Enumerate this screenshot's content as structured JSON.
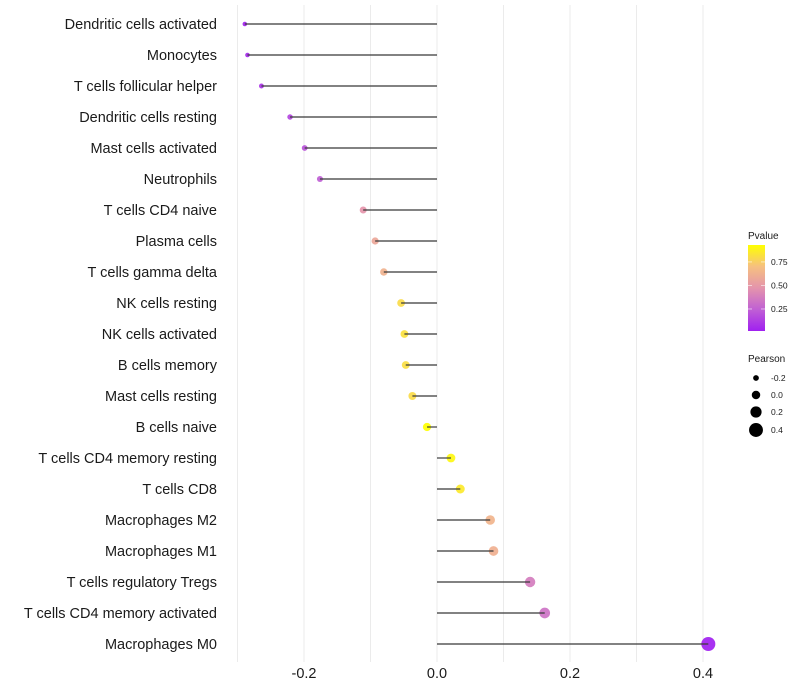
{
  "chart_data": {
    "type": "lollipop",
    "title": "",
    "xlabel": "",
    "ylabel": "",
    "xlim": [
      -0.3,
      0.42
    ],
    "x_ticks": [
      -0.2,
      0.0,
      0.2,
      0.4
    ],
    "x_tick_labels": [
      "-0.2",
      "0.0",
      "0.2",
      "0.4"
    ],
    "x_minor_grid": [
      -0.3,
      -0.1,
      0.1,
      0.3
    ],
    "grid": true,
    "categories": [
      "Dendritic cells activated",
      "Monocytes",
      "T cells follicular helper",
      "Dendritic cells resting",
      "Mast cells activated",
      "Neutrophils",
      "T cells CD4 naive",
      "Plasma cells",
      "T cells gamma delta",
      "NK cells resting",
      "NK cells activated",
      "B cells memory",
      "Mast cells resting",
      "B cells naive",
      "T cells CD4 memory resting",
      "T cells CD8",
      "Macrophages M2",
      "Macrophages M1",
      "T cells regulatory  Tregs ",
      "T cells CD4 memory activated",
      "Macrophages M0"
    ],
    "series": [
      {
        "name": "Pearson",
        "values": [
          -0.289,
          -0.285,
          -0.264,
          -0.221,
          -0.199,
          -0.176,
          -0.111,
          -0.093,
          -0.08,
          -0.054,
          -0.049,
          -0.047,
          -0.037,
          -0.015,
          0.021,
          0.035,
          0.08,
          0.085,
          0.14,
          0.162,
          0.408
        ]
      },
      {
        "name": "Pvalue",
        "values": [
          0.03,
          0.05,
          0.09,
          0.15,
          0.2,
          0.24,
          0.48,
          0.57,
          0.63,
          0.8,
          0.82,
          0.81,
          0.8,
          0.93,
          0.9,
          0.85,
          0.64,
          0.62,
          0.37,
          0.33,
          0.02
        ]
      }
    ],
    "legend": {
      "placement": "right",
      "color": {
        "title": "Pvalue",
        "ticks": [
          0.25,
          0.5,
          0.75
        ],
        "tick_labels": [
          "0.25",
          "0.50",
          "0.75"
        ],
        "range": [
          0.016,
          0.93
        ],
        "low_color": "#A020F0",
        "high_color": "#FFFF00"
      },
      "size": {
        "title": "Pearson",
        "values": [
          -0.2,
          0.0,
          0.2,
          0.4
        ],
        "labels": [
          "-0.2",
          "0.0",
          "0.2",
          "0.4"
        ]
      }
    }
  }
}
